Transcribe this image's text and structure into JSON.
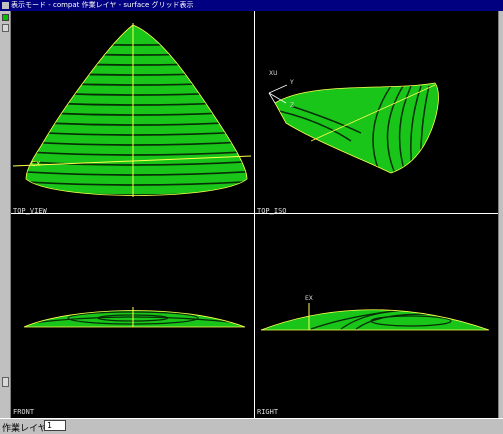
{
  "window": {
    "title": "表示モード - compat   作業レイヤ - surface   グリッド表示"
  },
  "viewports": {
    "top_left": {
      "label": "TOP_VIEW"
    },
    "top_right": {
      "label": "TOP_ISO"
    },
    "bottom_left": {
      "label": "FRONT"
    },
    "bottom_right": {
      "label": "RIGHT"
    }
  },
  "axis_labels": {
    "cx": "CX",
    "ex": "EX",
    "xu": "XU",
    "y": "Y",
    "z": "Z"
  },
  "status": {
    "label": "作業レイヤ",
    "value": "1"
  },
  "colors": {
    "surface": "#19c519",
    "contour": "#072e07",
    "axis": "#ffff4c",
    "divider": "#ffffff"
  }
}
